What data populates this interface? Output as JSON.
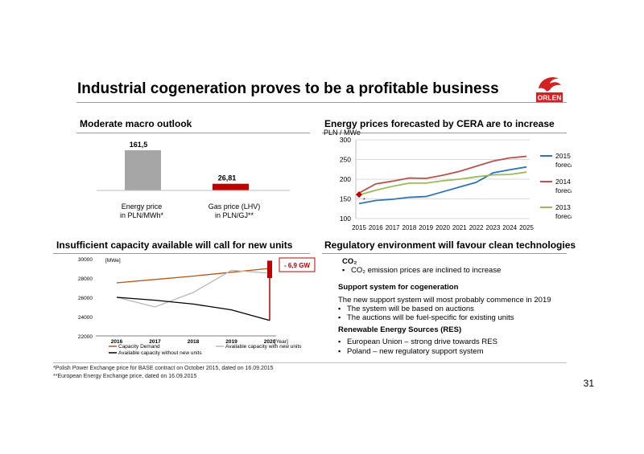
{
  "title": "Industrial cogeneration proves to be a profitable business",
  "logo_text": "ORLEN",
  "colors": {
    "accent": "#c00000",
    "gray_bar": "#a6a6a6",
    "blue": "#2e75b6",
    "red": "#c0504d",
    "green": "#9bbb59"
  },
  "macro": {
    "heading": "Moderate macro outlook",
    "chart_data": {
      "type": "bar",
      "categories": [
        "Energy price\nin PLN/MWh*",
        "Gas price (LHV)\nin PLN/GJ**"
      ],
      "values": [
        161.5,
        26.81
      ],
      "value_labels": [
        "161,5",
        "26,81"
      ]
    },
    "cat1_line1": "Energy price",
    "cat1_line2": "in PLN/MWh*",
    "cat2_line1": "Gas price (LHV)",
    "cat2_line2": "in PLN/GJ**"
  },
  "energy": {
    "heading": "Energy prices forecasted by CERA are to increase",
    "ylabel": "PLN / MWe",
    "chart_data": {
      "type": "line",
      "x": [
        "2015",
        "2016",
        "2017",
        "2018",
        "2019",
        "2020",
        "2021",
        "2022",
        "2023",
        "2024",
        "2025"
      ],
      "ylim": [
        100,
        300
      ],
      "yticks": [
        "100",
        "150",
        "200",
        "250",
        "300"
      ],
      "grid": true,
      "legend": "right",
      "series": [
        {
          "name": "2015 forecast",
          "legend_l1": "2015",
          "legend_l2": "forecast",
          "color": "#2e75b6",
          "values": [
            138,
            146,
            149,
            154,
            156,
            168,
            180,
            192,
            216,
            224,
            231
          ]
        },
        {
          "name": "2014 forecast",
          "legend_l1": "2014",
          "legend_l2": "forecast",
          "color": "#c0504d",
          "values": [
            165,
            188,
            195,
            203,
            202,
            210,
            220,
            233,
            246,
            254,
            258
          ]
        },
        {
          "name": "2013 forecast",
          "legend_l1": "2013",
          "legend_l2": "forecast",
          "color": "#9bbb59",
          "values": [
            160,
            172,
            182,
            190,
            190,
            196,
            200,
            206,
            211,
            212,
            218
          ]
        }
      ],
      "marker": {
        "x": "2015",
        "y": 161,
        "label": "*",
        "color": "#c00000"
      }
    }
  },
  "capacity": {
    "heading": "Insufficient capacity available will call for new units",
    "ylabel": "[MWe]",
    "xlabel": "[Year]",
    "callout": "- 6,9 GW",
    "chart_data": {
      "type": "line",
      "x": [
        "2016",
        "2017",
        "2018",
        "2019",
        "2020"
      ],
      "ylim": [
        22000,
        30000
      ],
      "yticks": [
        "22000",
        "24000",
        "26000",
        "28000",
        "30000"
      ],
      "series": [
        {
          "name": "Capacity Demand",
          "color": "#b5541b",
          "values": [
            27500,
            27850,
            28200,
            28600,
            29000
          ]
        },
        {
          "name": "Available capacity with new units",
          "color": "#b8b8b8",
          "values": [
            26000,
            25000,
            26500,
            28800,
            28500
          ]
        },
        {
          "name": "Available capacity without new units",
          "color": "#000000",
          "values": [
            26000,
            25700,
            25300,
            24700,
            23600
          ]
        }
      ]
    }
  },
  "regulatory": {
    "heading": "Regulatory environment will favour clean technologies",
    "co2_title": "CO₂",
    "co2_bullet": "CO₂ emission prices are inclined  to increase",
    "support_title": "Support system for cogeneration",
    "support_text": "The new support system will most probably commence in 2019",
    "support_b1": "The system will be based on auctions",
    "support_b2": "The auctions will be fuel-specific for existing units",
    "res_title": "Renewable Energy Sources (RES)",
    "res_b1": "European Union – strong drive towards RES",
    "res_b2": "Poland – new regulatory support system"
  },
  "footnotes": {
    "f1": "*Polish Power Exchange price for BASE contract on October 2015, dated on 16.09.2015",
    "f2": "**European Energy Exchange price, dated on 16.09.2015"
  },
  "page_number": "31"
}
